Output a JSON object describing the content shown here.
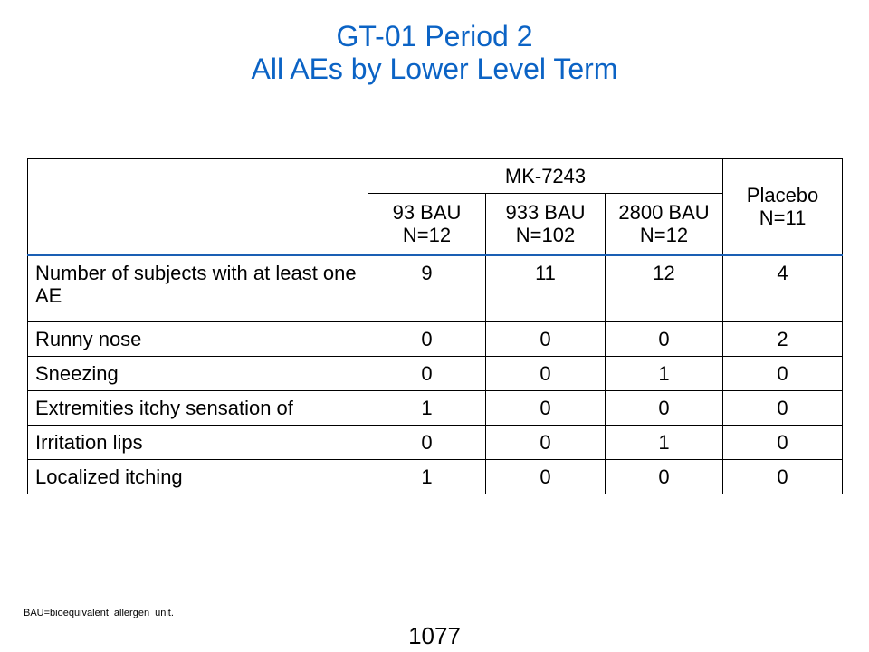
{
  "title": {
    "line1": "GT-01 Period 2",
    "line2": "All AEs by Lower Level Term"
  },
  "table": {
    "group_header": "MK-7243",
    "columns": [
      {
        "dose": "93 BAU",
        "n": "N=12"
      },
      {
        "dose": "933 BAU",
        "n": "N=102"
      },
      {
        "dose": "2800 BAU",
        "n": "N=12"
      }
    ],
    "placebo": {
      "label": "Placebo",
      "n": "N=11"
    },
    "rows": [
      {
        "term": "Number of subjects with at least one AE",
        "values": [
          "9",
          "11",
          "12",
          "4"
        ]
      },
      {
        "term": "Runny nose",
        "values": [
          "0",
          "0",
          "0",
          "2"
        ]
      },
      {
        "term": "Sneezing",
        "values": [
          "0",
          "0",
          "1",
          "0"
        ]
      },
      {
        "term": "Extremities itchy sensation of",
        "values": [
          "1",
          "0",
          "0",
          "0"
        ]
      },
      {
        "term": "Irritation lips",
        "values": [
          "0",
          "0",
          "1",
          "0"
        ]
      },
      {
        "term": "Localized itching",
        "values": [
          "1",
          "0",
          "0",
          "0"
        ]
      }
    ]
  },
  "footnote": "BAU=bioequivalent allergen unit.",
  "page_number": "1077",
  "colors": {
    "title": "#0b63c5",
    "header_rule": "#1a5fb4"
  }
}
